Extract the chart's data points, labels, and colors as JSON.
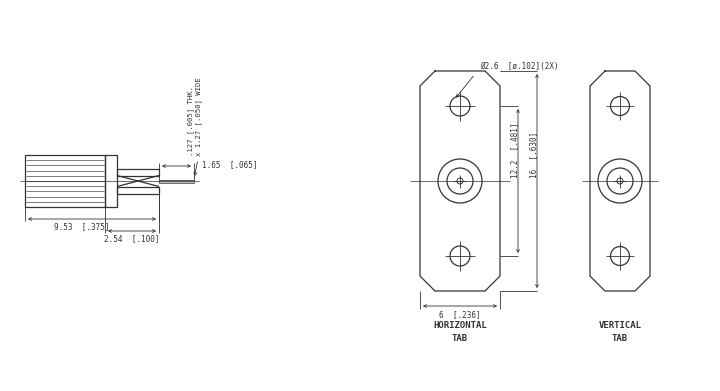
{
  "bg_color": "#ffffff",
  "line_color": "#333333",
  "lw": 0.9,
  "thin_lw": 0.6,
  "dim_lw": 0.6,
  "annotations": {
    "thk_wide": ".127 [.005] THK.\nx 1.27 [.050] WIDE",
    "dim_1": "1.65  [.065]",
    "dim_2": "2.54  [.100]",
    "dim_3": "9.53  [.375]",
    "dim_dia": "Ø2.6  [ø.102](2X)",
    "dim_12": "12.2  [.481]",
    "dim_16": "16  [.630]",
    "dim_6": "6  [.236]",
    "horiz_label1": "HORIZONTAL",
    "horiz_label2": "TAB",
    "vert_label1": "VERTICAL",
    "vert_label2": "TAB"
  }
}
